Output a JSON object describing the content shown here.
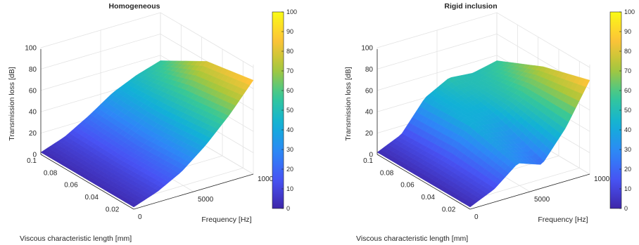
{
  "chart_data": [
    {
      "type": "surface",
      "title": "Homogeneous",
      "xlabel": "Frequency [Hz]",
      "ylabel": "Viscous characteristic length [mm]",
      "zlabel": "Transmission loss [dB]",
      "x_ticks": [
        "0",
        "5000",
        "1000"
      ],
      "y_ticks": [
        "0.1",
        "0.08",
        "0.06",
        "0.04",
        "0.02"
      ],
      "z_ticks": [
        "0",
        "20",
        "40",
        "60",
        "80",
        "100"
      ],
      "xlim": [
        0,
        10000
      ],
      "ylim": [
        0.01,
        0.1
      ],
      "zlim": [
        0,
        100
      ],
      "grid": true,
      "colormap": "parula",
      "colorbar": {
        "ticks": [
          "0",
          "10",
          "20",
          "30",
          "40",
          "50",
          "60",
          "70",
          "80",
          "90",
          "100"
        ],
        "range": [
          0,
          100
        ]
      },
      "surface_profile": {
        "frequency": [
          0,
          2000,
          4000,
          6000,
          8000,
          10000
        ],
        "length": [
          0.01,
          0.055,
          0.1
        ],
        "transmission_loss": [
          [
            2,
            10,
            22,
            40,
            62,
            88
          ],
          [
            2,
            9,
            20,
            36,
            56,
            80
          ],
          [
            2,
            10,
            23,
            38,
            48,
            55
          ]
        ]
      }
    },
    {
      "type": "surface",
      "title": "Rigid inclusion",
      "xlabel": "Frequency [Hz]",
      "ylabel": "Viscous characteristic length [mm]",
      "zlabel": "Transmission loss [dB]",
      "x_ticks": [
        "0",
        "5000",
        "1000"
      ],
      "y_ticks": [
        "0.1",
        "0.08",
        "0.06",
        "0.04",
        "0.02"
      ],
      "z_ticks": [
        "0",
        "20",
        "40",
        "60",
        "80",
        "100"
      ],
      "xlim": [
        0,
        10000
      ],
      "ylim": [
        0.01,
        0.1
      ],
      "zlim": [
        0,
        100
      ],
      "grid": true,
      "colormap": "parula",
      "colorbar": {
        "ticks": [
          "0",
          "10",
          "20",
          "30",
          "40",
          "50",
          "60",
          "70",
          "80",
          "90",
          "100"
        ],
        "range": [
          0,
          100
        ]
      },
      "surface_profile": {
        "frequency": [
          0,
          2000,
          4000,
          6000,
          8000,
          10000
        ],
        "length": [
          0.01,
          0.055,
          0.1
        ],
        "transmission_loss": [
          [
            2,
            12,
            30,
            22,
            50,
            88
          ],
          [
            2,
            14,
            42,
            40,
            55,
            75
          ],
          [
            2,
            12,
            40,
            52,
            50,
            55
          ]
        ]
      }
    }
  ]
}
